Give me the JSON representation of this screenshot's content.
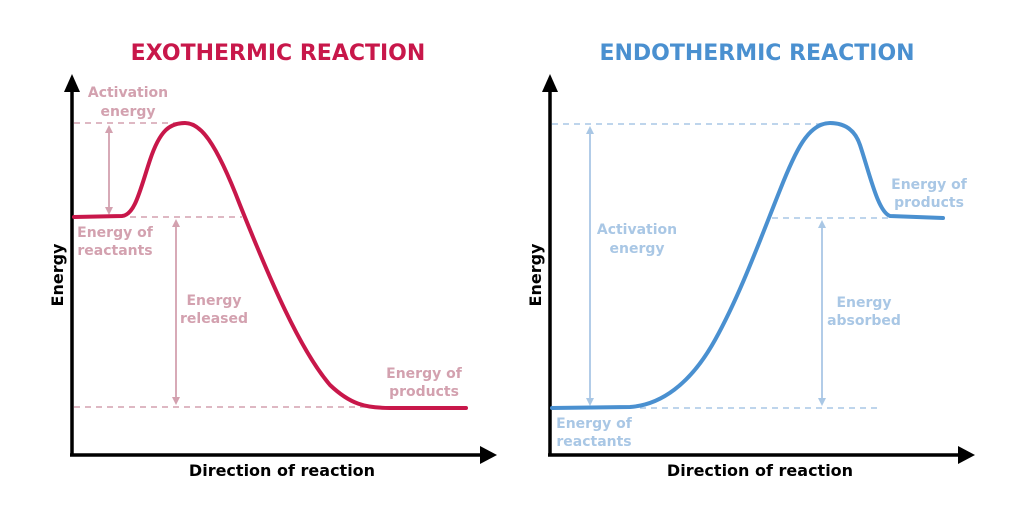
{
  "colors": {
    "exo": "#c8174a",
    "exo_faded": "#d3a1af",
    "endo": "#4a90d0",
    "endo_faded": "#a9c7e5",
    "axis": "#000000"
  },
  "exothermic": {
    "title": "EXOTHERMIC REACTION",
    "y_axis": "Energy",
    "x_axis": "Direction of reaction",
    "activation_line1": "Activation",
    "activation_line2": "energy",
    "reactants_line1": "Energy of",
    "reactants_line2": "reactants",
    "released_line1": "Energy",
    "released_line2": "released",
    "products_line1": "Energy of",
    "products_line2": "products"
  },
  "endothermic": {
    "title": "ENDOTHERMIC REACTION",
    "y_axis": "Energy",
    "x_axis": "Direction of reaction",
    "activation_line1": "Activation",
    "activation_line2": "energy",
    "reactants_line1": "Energy of",
    "reactants_line2": "reactants",
    "absorbed_line1": "Energy",
    "absorbed_line2": "absorbed",
    "products_line1": "Energy of",
    "products_line2": "products"
  }
}
